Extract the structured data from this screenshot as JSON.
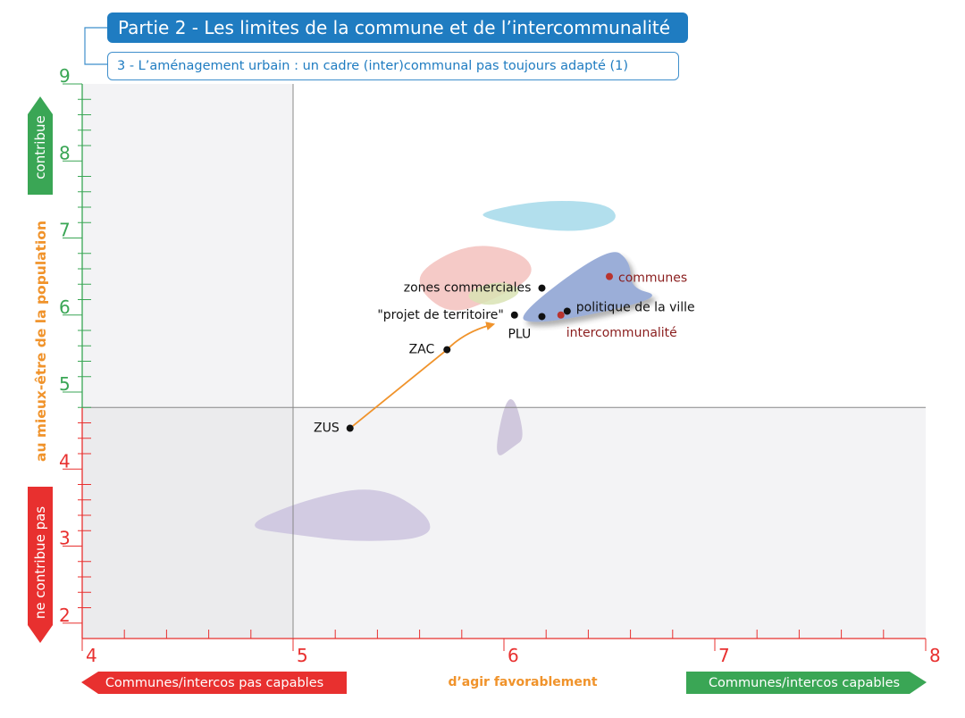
{
  "header": {
    "title": "Partie 2 - Les limites de la commune et de l’intercommunalité",
    "subtitle": "3 - L’aménagement urbain : un cadre (inter)communal pas toujours adapté (1)"
  },
  "axes": {
    "x": {
      "range": [
        4,
        8
      ],
      "tick_labels": [
        "4",
        "5",
        "6",
        "7",
        "8"
      ],
      "color": "#e8302f"
    },
    "y": {
      "range": [
        1.8,
        9
      ],
      "tick_labels": [
        "2",
        "3",
        "4",
        "5",
        "6",
        "7",
        "8",
        "9"
      ]
    },
    "y_upper_color": "#3aa655",
    "y_lower_color": "#e8302f",
    "divider_x": 5,
    "divider_y": 4.8
  },
  "labels": {
    "y_axis_title": "au mieux-être de la population",
    "y_axis_title_color": "#f0932b",
    "x_axis_title": "d’agir favorablement",
    "x_axis_title_color": "#f0932b",
    "top_arrow": "contribue",
    "bottom_arrow": "ne contribue pas",
    "left_arrow": "Communes/intercos pas capables",
    "right_arrow": "Communes/intercos capables",
    "green": "#3aa655",
    "red": "#e8302f"
  },
  "chart_data": {
    "type": "scatter",
    "xlim": [
      4,
      8
    ],
    "ylim": [
      1.8,
      9
    ],
    "points": [
      {
        "label": "zones commerciales",
        "x": 6.18,
        "y": 6.35,
        "color": "#111111",
        "label_color": "#111111"
      },
      {
        "label": "\"projet de territoire\"",
        "x": 6.05,
        "y": 6.0,
        "color": "#111111",
        "label_color": "#111111"
      },
      {
        "label": "PLU",
        "x": 6.18,
        "y": 5.98,
        "color": "#111111",
        "label_color": "#111111"
      },
      {
        "label": "politique de la ville",
        "x": 6.3,
        "y": 6.05,
        "color": "#111111",
        "label_color": "#111111"
      },
      {
        "label": "intercommunalité",
        "x": 6.27,
        "y": 6.0,
        "color": "#b9332e",
        "label_color": "#8a1d1d"
      },
      {
        "label": "communes",
        "x": 6.5,
        "y": 6.5,
        "color": "#b9332e",
        "label_color": "#8a1d1d"
      },
      {
        "label": "ZAC",
        "x": 5.73,
        "y": 5.55,
        "color": "#111111",
        "label_color": "#111111"
      },
      {
        "label": "ZUS",
        "x": 5.27,
        "y": 4.53,
        "color": "#111111",
        "label_color": "#111111"
      }
    ],
    "trajectory": {
      "from": [
        5.27,
        4.53
      ],
      "via": [
        5.73,
        5.55
      ],
      "to": [
        5.95,
        5.88
      ],
      "color": "#f0932b"
    },
    "zones": [
      {
        "color": "#a5d9ea",
        "points": [
          [
            5.9,
            7.35
          ],
          [
            6.2,
            7.5
          ],
          [
            6.5,
            7.45
          ],
          [
            6.55,
            7.2
          ],
          [
            6.3,
            7.05
          ],
          [
            5.9,
            7.25
          ]
        ]
      },
      {
        "color": "#f3c1bd",
        "points": [
          [
            5.6,
            6.6
          ],
          [
            5.85,
            6.95
          ],
          [
            6.1,
            6.8
          ],
          [
            6.15,
            6.5
          ],
          [
            5.95,
            6.2
          ],
          [
            5.75,
            6.0
          ],
          [
            5.6,
            6.3
          ]
        ]
      },
      {
        "color": "#d9e3b4",
        "points": [
          [
            5.85,
            6.35
          ],
          [
            6.0,
            6.45
          ],
          [
            6.1,
            6.3
          ],
          [
            5.95,
            6.1
          ],
          [
            5.82,
            6.2
          ]
        ]
      },
      {
        "color": "#8aa0d2",
        "points": [
          [
            6.05,
            5.98
          ],
          [
            6.5,
            6.9
          ],
          [
            6.6,
            6.7
          ],
          [
            6.6,
            6.35
          ],
          [
            6.75,
            6.25
          ],
          [
            6.5,
            6.05
          ],
          [
            6.15,
            5.88
          ]
        ]
      },
      {
        "color": "#c9bfd8",
        "points": [
          [
            5.95,
            4.1
          ],
          [
            6.0,
            4.85
          ],
          [
            6.05,
            4.95
          ],
          [
            6.1,
            4.4
          ],
          [
            6.05,
            4.3
          ]
        ]
      },
      {
        "color": "#cbc3de",
        "points": [
          [
            4.75,
            3.25
          ],
          [
            5.05,
            3.6
          ],
          [
            5.4,
            3.8
          ],
          [
            5.65,
            3.4
          ],
          [
            5.65,
            3.1
          ],
          [
            5.3,
            3.05
          ],
          [
            5.0,
            3.15
          ]
        ]
      }
    ]
  }
}
